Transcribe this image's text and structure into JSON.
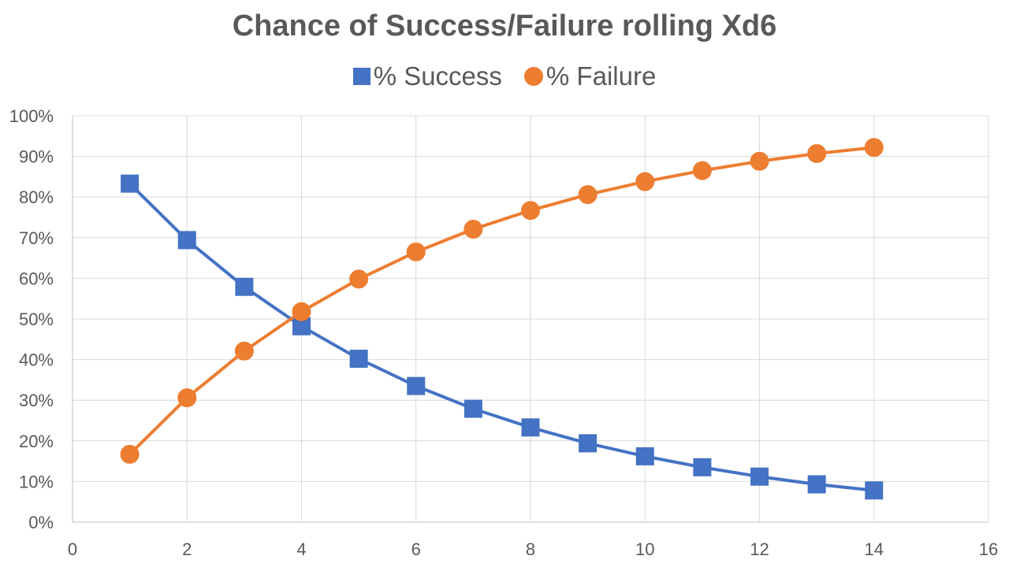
{
  "chart_data": {
    "type": "line",
    "title": "Chance of Success/Failure rolling Xd6",
    "xlabel": "",
    "ylabel": "",
    "xlim": [
      0,
      16
    ],
    "ylim": [
      0,
      1
    ],
    "x_ticks": [
      0,
      2,
      4,
      6,
      8,
      10,
      12,
      14,
      16
    ],
    "y_ticks": [
      "0%",
      "10%",
      "20%",
      "30%",
      "40%",
      "50%",
      "60%",
      "70%",
      "80%",
      "90%",
      "100%"
    ],
    "grid": true,
    "legend_position": "top",
    "x": [
      1,
      2,
      3,
      4,
      5,
      6,
      7,
      8,
      9,
      10,
      11,
      12,
      13,
      14
    ],
    "series": [
      {
        "name": "% Success",
        "color": "#4472C4",
        "marker": "square",
        "values": [
          0.833,
          0.694,
          0.579,
          0.482,
          0.402,
          0.335,
          0.279,
          0.233,
          0.194,
          0.162,
          0.135,
          0.112,
          0.093,
          0.078
        ]
      },
      {
        "name": "% Failure",
        "color": "#ED7D31",
        "marker": "circle",
        "values": [
          0.167,
          0.306,
          0.421,
          0.518,
          0.598,
          0.665,
          0.721,
          0.767,
          0.806,
          0.838,
          0.865,
          0.888,
          0.907,
          0.922
        ]
      }
    ]
  }
}
